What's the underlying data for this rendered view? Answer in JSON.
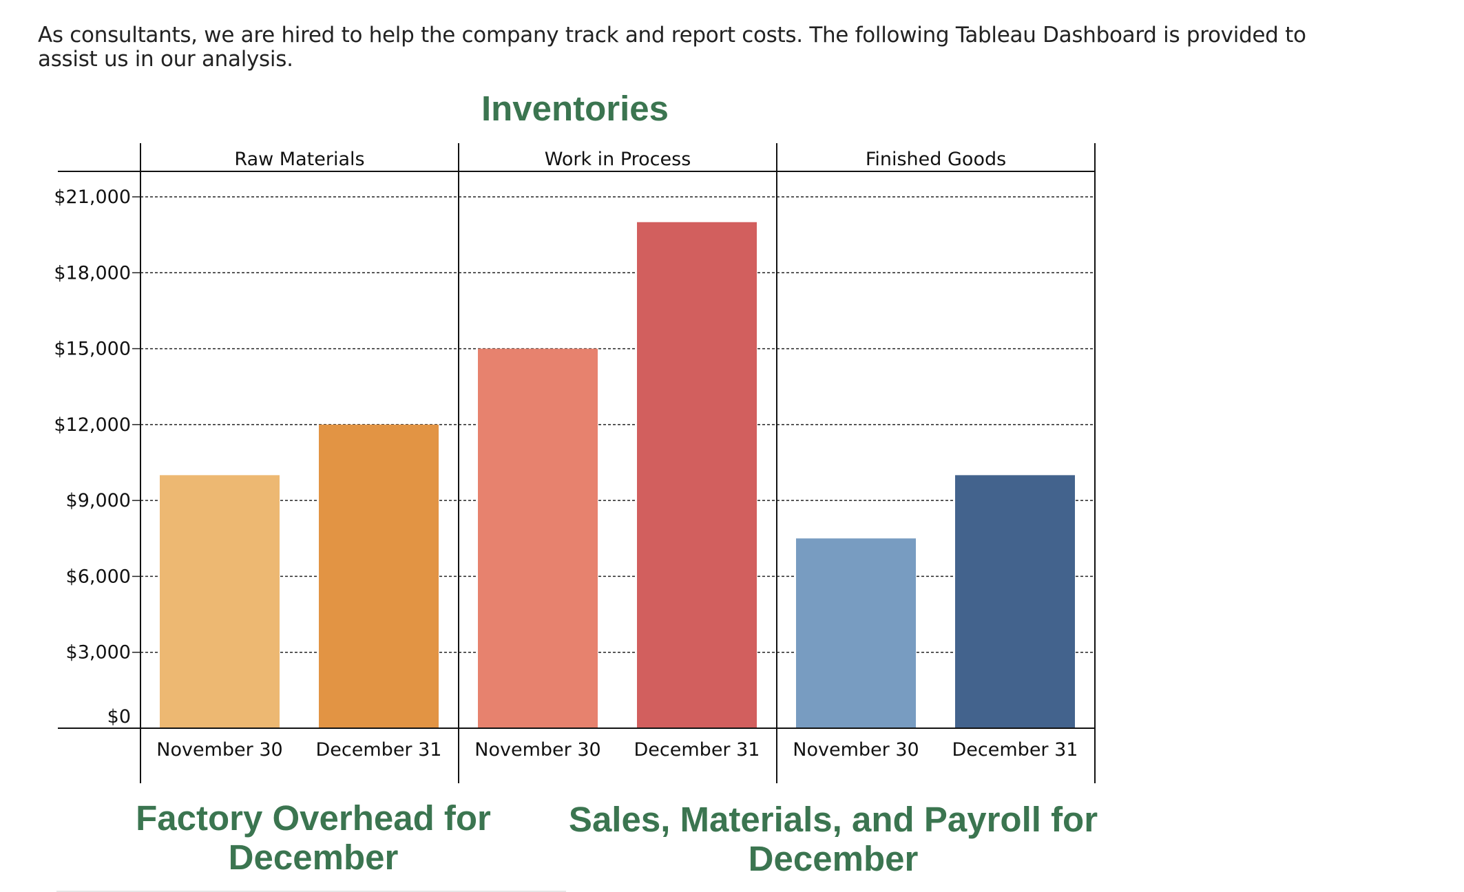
{
  "intro_text": "As consultants, we are hired to help the company track and report costs. The following Tableau Dashboard is provided to assist us in our analysis.",
  "headings": {
    "factory_overhead": "Factory Overhead for December",
    "sales_materials_payroll": "Sales, Materials, and Payroll for December"
  },
  "chart_data": {
    "type": "bar",
    "title": "Inventories",
    "ylim": [
      0,
      21000
    ],
    "y_ticks": [
      0,
      3000,
      6000,
      9000,
      12000,
      15000,
      18000,
      21000
    ],
    "y_tick_labels": [
      "$0",
      "$3,000",
      "$6,000",
      "$9,000",
      "$12,000",
      "$15,000",
      "$18,000",
      "$21,000"
    ],
    "grid": true,
    "panes": [
      {
        "name": "Raw Materials",
        "categories": [
          "November 30",
          "December 31"
        ],
        "values": [
          10000,
          12000
        ],
        "colors": [
          "#EDB872",
          "#E29444"
        ]
      },
      {
        "name": "Work in Process",
        "categories": [
          "November 30",
          "December 31"
        ],
        "values": [
          15000,
          20000
        ],
        "colors": [
          "#E7826E",
          "#D25F5E"
        ]
      },
      {
        "name": "Finished Goods",
        "categories": [
          "November 30",
          "December 31"
        ],
        "values": [
          7500,
          10000
        ],
        "colors": [
          "#789CC1",
          "#43638D"
        ]
      }
    ]
  },
  "colors": {
    "heading": "#3b7550"
  }
}
